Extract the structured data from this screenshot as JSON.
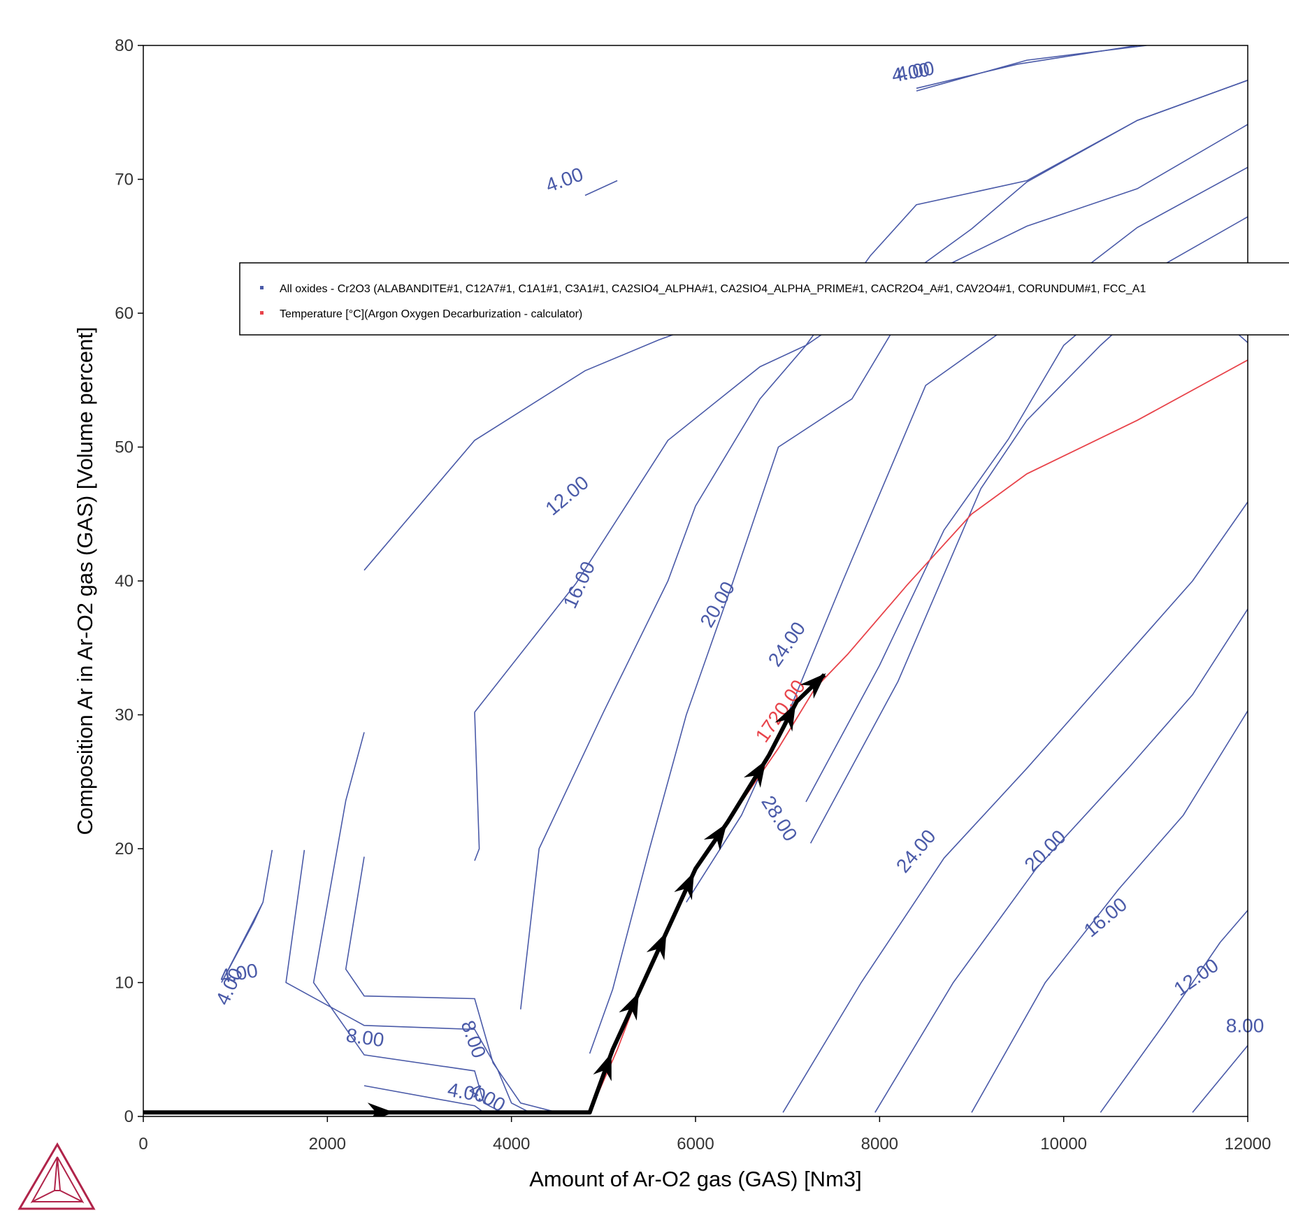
{
  "colors": {
    "oxides": "#4a5aa8",
    "temperature": "#e8434a",
    "path": "#000000",
    "axis": "#000000",
    "logo": "#b0244a"
  },
  "legend": {
    "items": [
      {
        "label": "All oxides - Cr2O3 (ALABANDITE#1, C12A7#1, C1A1#1, C3A1#1, CA2SIO4_ALPHA#1, CA2SIO4_ALPHA_PRIME#1, CACR2O4_A#1, CAV2O4#1, CORUNDUM#1, FCC_A1",
        "color": "#4a5aa8"
      },
      {
        "label": "Temperature [°C](Argon Oxygen Decarburization - calculator)",
        "color": "#e8434a"
      }
    ]
  },
  "icons": {
    "logo": "thermo-calc-logo-icon"
  },
  "chart_data": {
    "type": "line",
    "title": "",
    "xlabel": "Amount of Ar-O2 gas (GAS) [Nm3]",
    "ylabel": "Composition Ar in Ar-O2 gas (GAS) [Volume percent]",
    "xlim": [
      0,
      12000
    ],
    "ylim": [
      0,
      80
    ],
    "xticks": [
      0,
      2000,
      4000,
      6000,
      8000,
      10000,
      12000
    ],
    "yticks": [
      0,
      10,
      20,
      30,
      40,
      50,
      60,
      70,
      80
    ],
    "xtick_labels": [
      "0",
      "2000",
      "4000",
      "6000",
      "8000",
      "10000",
      "12000"
    ],
    "ytick_labels": [
      "0",
      "10",
      "20",
      "30",
      "40",
      "50",
      "60",
      "70",
      "80"
    ],
    "grid": false,
    "legend_position": "top-right",
    "series": [
      {
        "name": "All oxides - Cr2O3",
        "kind": "contour",
        "color": "#4a5aa8",
        "lines": [
          [
            [
              8400,
              76.6
            ],
            [
              9600,
              78.9
            ],
            [
              10900,
              80
            ]
          ],
          [
            [
              8400,
              76.8
            ],
            [
              9500,
              78.6
            ],
            [
              10800,
              80
            ]
          ],
          [
            [
              4800,
              68.8
            ],
            [
              5150,
              69.9
            ]
          ],
          [
            [
              2400,
              40.8
            ],
            [
              3600,
              50.5
            ],
            [
              4800,
              55.7
            ],
            [
              5600,
              58.0
            ],
            [
              6200,
              59.5
            ]
          ],
          [
            [
              3600,
              30.2
            ],
            [
              4700,
              39.8
            ],
            [
              5700,
              50.5
            ],
            [
              6700,
              56.0
            ],
            [
              7200,
              57.6
            ],
            [
              8300,
              62.8
            ],
            [
              9000,
              66.3
            ],
            [
              9600,
              69.8
            ],
            [
              10800,
              74.4
            ],
            [
              12000,
              77.4
            ]
          ],
          [
            [
              4100,
              8.0
            ],
            [
              4300,
              20.0
            ],
            [
              5000,
              30.2
            ],
            [
              5700,
              40.0
            ],
            [
              6000,
              45.6
            ],
            [
              6700,
              53.6
            ],
            [
              7200,
              57.6
            ],
            [
              7900,
              64.3
            ],
            [
              8400,
              68.1
            ],
            [
              9600,
              69.9
            ],
            [
              10800,
              74.4
            ],
            [
              12000,
              77.4
            ]
          ],
          [
            [
              4850,
              4.7
            ],
            [
              5100,
              9.5
            ],
            [
              5500,
              20.0
            ],
            [
              5900,
              30.0
            ],
            [
              6400,
              39.8
            ],
            [
              6900,
              50.0
            ],
            [
              7700,
              53.6
            ],
            [
              8500,
              62.8
            ],
            [
              9600,
              66.5
            ],
            [
              10800,
              69.3
            ],
            [
              12000,
              74.1
            ]
          ],
          [
            [
              5900,
              16.0
            ],
            [
              6500,
              22.5
            ],
            [
              7000,
              30.0
            ],
            [
              7600,
              40.0
            ],
            [
              8500,
              54.6
            ],
            [
              9400,
              59.0
            ],
            [
              10800,
              66.4
            ],
            [
              12000,
              70.9
            ]
          ],
          [
            [
              7200,
              23.5
            ],
            [
              8000,
              33.7
            ],
            [
              8700,
              43.8
            ],
            [
              9400,
              50.6
            ],
            [
              10000,
              57.6
            ],
            [
              10900,
              62.9
            ],
            [
              12000,
              67.2
            ]
          ],
          [
            [
              7250,
              20.4
            ],
            [
              8200,
              32.5
            ],
            [
              9100,
              46.9
            ],
            [
              9600,
              52.0
            ],
            [
              10400,
              57.6
            ],
            [
              11200,
              62.6
            ],
            [
              12000,
              57.8
            ]
          ],
          [
            [
              6950,
              0.3
            ],
            [
              7800,
              10.0
            ],
            [
              8700,
              19.3
            ],
            [
              9600,
              26.0
            ],
            [
              10500,
              33.0
            ],
            [
              11400,
              40.0
            ],
            [
              12000,
              45.9
            ]
          ],
          [
            [
              7950,
              0.3
            ],
            [
              8800,
              10.0
            ],
            [
              9700,
              18.5
            ],
            [
              10700,
              26.0
            ],
            [
              11400,
              31.5
            ],
            [
              12000,
              37.9
            ]
          ],
          [
            [
              9000,
              0.3
            ],
            [
              9800,
              10.0
            ],
            [
              10600,
              17.0
            ],
            [
              11300,
              22.5
            ],
            [
              12000,
              30.3
            ]
          ],
          [
            [
              10400,
              0.3
            ],
            [
              11100,
              7.0
            ],
            [
              11700,
              13.0
            ],
            [
              12000,
              15.4
            ]
          ],
          [
            [
              11400,
              0.3
            ],
            [
              12000,
              5.3
            ]
          ],
          [
            [
              1400,
              19.9
            ],
            [
              1300,
              16.0
            ],
            [
              1200,
              14.5
            ],
            [
              850,
              10.0
            ],
            [
              1300,
              16.0
            ],
            [
              1400,
              19.9
            ]
          ],
          [
            [
              1750,
              19.9
            ],
            [
              1550,
              10.0
            ],
            [
              2400,
              6.8
            ],
            [
              3600,
              6.5
            ],
            [
              3850,
              3.5
            ],
            [
              4000,
              1.0
            ],
            [
              4200,
              0.3
            ]
          ],
          [
            [
              2400,
              28.7
            ],
            [
              2200,
              23.6
            ],
            [
              1850,
              10.0
            ],
            [
              2400,
              4.6
            ],
            [
              3600,
              3.4
            ],
            [
              3700,
              1.0
            ],
            [
              3900,
              0.3
            ]
          ],
          [
            [
              2400,
              19.4
            ],
            [
              2200,
              11.0
            ],
            [
              2400,
              9.0
            ],
            [
              3600,
              8.8
            ],
            [
              3800,
              4.0
            ],
            [
              4100,
              1.0
            ],
            [
              4500,
              0.3
            ]
          ],
          [
            [
              3600,
              19.1
            ],
            [
              3650,
              20.0
            ],
            [
              3600,
              30.2
            ]
          ],
          [
            [
              2400,
              2.3
            ],
            [
              3600,
              0.8
            ],
            [
              3700,
              0.3
            ]
          ]
        ]
      },
      {
        "name": "Temperature [°C](Argon Oxygen Decarburization - calculator)",
        "kind": "contour",
        "color": "#e8434a",
        "lines": [
          [
            [
              4850,
              0.3
            ],
            [
              5150,
              5.0
            ],
            [
              5400,
              9.5
            ],
            [
              5700,
              14.0
            ],
            [
              6000,
              18.5
            ],
            [
              6400,
              22.5
            ],
            [
              6900,
              27.5
            ],
            [
              7300,
              32.0
            ],
            [
              7650,
              34.5
            ],
            [
              8300,
              39.7
            ],
            [
              9000,
              45.0
            ],
            [
              9600,
              48.0
            ],
            [
              10800,
              52.0
            ],
            [
              12000,
              56.5
            ]
          ]
        ]
      }
    ],
    "path": [
      [
        0,
        0.3
      ],
      [
        4850,
        0.3
      ],
      [
        5100,
        5.0
      ],
      [
        5400,
        9.5
      ],
      [
        5700,
        14.0
      ],
      [
        6000,
        18.5
      ],
      [
        6350,
        22.0
      ],
      [
        6800,
        27.0
      ],
      [
        7100,
        31.0
      ],
      [
        7400,
        33.0
      ]
    ],
    "contour_labels": [
      {
        "text": "4.00",
        "x": 8350,
        "y": 77.5,
        "angle": -10,
        "color": "#4a5aa8"
      },
      {
        "text": "4.00",
        "x": 8400,
        "y": 77.6,
        "angle": -10,
        "color": "#4a5aa8"
      },
      {
        "text": "4.00",
        "x": 4600,
        "y": 69.5,
        "angle": -20,
        "color": "#4a5aa8"
      },
      {
        "text": "12.00",
        "x": 4650,
        "y": 46.0,
        "angle": -40,
        "color": "#4a5aa8"
      },
      {
        "text": "16.00",
        "x": 4800,
        "y": 39.5,
        "angle": -65,
        "color": "#4a5aa8"
      },
      {
        "text": "20.00",
        "x": 6300,
        "y": 38.0,
        "angle": -60,
        "color": "#4a5aa8"
      },
      {
        "text": "24.00",
        "x": 7050,
        "y": 35.0,
        "angle": -55,
        "color": "#4a5aa8"
      },
      {
        "text": "1720.00",
        "x": 6980,
        "y": 30.0,
        "angle": -55,
        "color": "#e8434a"
      },
      {
        "text": "28.00",
        "x": 6850,
        "y": 22.0,
        "angle": 58,
        "color": "#4a5aa8"
      },
      {
        "text": "24.00",
        "x": 8450,
        "y": 19.5,
        "angle": -50,
        "color": "#4a5aa8"
      },
      {
        "text": "20.00",
        "x": 9850,
        "y": 19.5,
        "angle": -45,
        "color": "#4a5aa8"
      },
      {
        "text": "16.00",
        "x": 10500,
        "y": 14.5,
        "angle": -40,
        "color": "#4a5aa8"
      },
      {
        "text": "12.00",
        "x": 11480,
        "y": 10.0,
        "angle": -35,
        "color": "#4a5aa8"
      },
      {
        "text": "8.00",
        "x": 11970,
        "y": 6.3,
        "angle": 0,
        "color": "#4a5aa8"
      },
      {
        "text": "4.00",
        "x": 1000,
        "y": 9.5,
        "angle": -65,
        "color": "#4a5aa8"
      },
      {
        "text": "4.00",
        "x": 1050,
        "y": 10.2,
        "angle": -10,
        "color": "#4a5aa8"
      },
      {
        "text": "8.00",
        "x": 2400,
        "y": 5.4,
        "angle": 8,
        "color": "#4a5aa8"
      },
      {
        "text": "8.00",
        "x": 3520,
        "y": 5.6,
        "angle": 70,
        "color": "#4a5aa8"
      },
      {
        "text": "4.00",
        "x": 3500,
        "y": 1.3,
        "angle": 10,
        "color": "#4a5aa8"
      },
      {
        "text": "4.00",
        "x": 3700,
        "y": 1.0,
        "angle": 30,
        "color": "#4a5aa8"
      }
    ]
  }
}
